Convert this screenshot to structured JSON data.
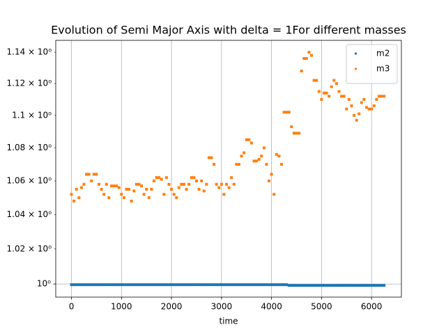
{
  "chart_data": {
    "type": "scatter",
    "title": "Evolution of Semi Major Axis with delta = 1For different masses",
    "x_label": "time",
    "log_y": true,
    "grid": true,
    "legend_position": "upper right",
    "xlim": [
      -314,
      6597
    ],
    "xticks": [
      0,
      1000,
      2000,
      3000,
      4000,
      5000,
      6000
    ],
    "ylim": [
      0.9926,
      1.1477
    ],
    "yticks": [
      {
        "value": 1.0,
        "label": "10⁰"
      }
    ],
    "yminorticks": [
      {
        "value": 1.02,
        "label": "1.02 × 10⁰"
      },
      {
        "value": 1.04,
        "label": "1.04 × 10⁰"
      },
      {
        "value": 1.06,
        "label": "1.06 × 10⁰"
      },
      {
        "value": 1.08,
        "label": "1.08 × 10⁰"
      },
      {
        "value": 1.1,
        "label": "1.1 × 10⁰"
      },
      {
        "value": 1.12,
        "label": "1.12 × 10⁰"
      },
      {
        "value": 1.14,
        "label": "1.14 × 10⁰"
      }
    ],
    "x": [
      0,
      50,
      100,
      150,
      200,
      250,
      300,
      350,
      400,
      450,
      500,
      550,
      600,
      650,
      700,
      750,
      800,
      850,
      900,
      950,
      1000,
      1050,
      1100,
      1150,
      1200,
      1250,
      1300,
      1350,
      1400,
      1450,
      1500,
      1550,
      1600,
      1650,
      1700,
      1750,
      1800,
      1850,
      1900,
      1950,
      2000,
      2050,
      2100,
      2150,
      2200,
      2250,
      2300,
      2350,
      2400,
      2450,
      2500,
      2550,
      2600,
      2650,
      2700,
      2750,
      2800,
      2850,
      2900,
      2950,
      3000,
      3050,
      3100,
      3150,
      3200,
      3250,
      3300,
      3350,
      3400,
      3450,
      3500,
      3550,
      3600,
      3650,
      3700,
      3750,
      3800,
      3850,
      3900,
      3950,
      4000,
      4050,
      4100,
      4150,
      4200,
      4250,
      4300,
      4350,
      4400,
      4450,
      4500,
      4550,
      4600,
      4650,
      4700,
      4750,
      4800,
      4850,
      4900,
      4950,
      5000,
      5050,
      5100,
      5150,
      5200,
      5250,
      5300,
      5350,
      5400,
      5450,
      5500,
      5550,
      5600,
      5650,
      5700,
      5750,
      5800,
      5850,
      5900,
      5950,
      6000,
      6050,
      6100,
      6150,
      6200,
      6250
    ],
    "series": [
      {
        "name": "m2",
        "color": "#1f77b4",
        "values": [
          0.9996,
          0.9996,
          0.9996,
          0.9996,
          0.9996,
          0.9996,
          0.9996,
          0.9996,
          0.9996,
          0.9996,
          0.9996,
          0.9996,
          0.9996,
          0.9996,
          0.9996,
          0.9996,
          0.9996,
          0.9996,
          0.9996,
          0.9996,
          0.9996,
          0.9996,
          0.9996,
          0.9996,
          0.9996,
          0.9996,
          0.9996,
          0.9996,
          0.9996,
          0.9996,
          0.9996,
          0.9996,
          0.9996,
          0.9996,
          0.9996,
          0.9996,
          0.9996,
          0.9996,
          0.9996,
          0.9996,
          0.9996,
          0.9996,
          0.9996,
          0.9996,
          0.9996,
          0.9996,
          0.9996,
          0.9996,
          0.9996,
          0.9996,
          0.9996,
          0.9996,
          0.9996,
          0.9996,
          0.9996,
          0.9996,
          0.9996,
          0.9996,
          0.9996,
          0.9996,
          0.9996,
          0.9996,
          0.9996,
          0.9996,
          0.9996,
          0.9996,
          0.9996,
          0.9996,
          0.9996,
          0.9996,
          0.9996,
          0.9996,
          0.9996,
          0.9996,
          0.9996,
          0.9996,
          0.9996,
          0.9996,
          0.9996,
          0.9996,
          0.9996,
          0.9996,
          0.9996,
          0.9996,
          0.9996,
          0.9996,
          0.9996,
          0.9992,
          0.9992,
          0.9992,
          0.9992,
          0.9992,
          0.9992,
          0.9992,
          0.9992,
          0.9992,
          0.9992,
          0.9992,
          0.9992,
          0.9992,
          0.9992,
          0.9992,
          0.9992,
          0.9992,
          0.9992,
          0.9992,
          0.9992,
          0.9992,
          0.9992,
          0.9992,
          0.9992,
          0.9992,
          0.9992,
          0.9992,
          0.9992,
          0.9992,
          0.9992,
          0.9992,
          0.9992,
          0.9992,
          0.9992,
          0.9992,
          0.9992,
          0.9992,
          0.9992,
          0.9992
        ]
      },
      {
        "name": "m3",
        "color": "#ff7f0e",
        "values": [
          1.052,
          1.048,
          1.055,
          1.05,
          1.056,
          1.058,
          1.064,
          1.064,
          1.06,
          1.064,
          1.064,
          1.058,
          1.055,
          1.052,
          1.058,
          1.05,
          1.057,
          1.057,
          1.057,
          1.056,
          1.052,
          1.05,
          1.055,
          1.055,
          1.048,
          1.054,
          1.058,
          1.058,
          1.057,
          1.052,
          1.055,
          1.05,
          1.055,
          1.06,
          1.062,
          1.062,
          1.061,
          1.052,
          1.062,
          1.058,
          1.055,
          1.052,
          1.05,
          1.056,
          1.058,
          1.058,
          1.055,
          1.058,
          1.062,
          1.062,
          1.06,
          1.055,
          1.06,
          1.054,
          1.058,
          1.074,
          1.074,
          1.07,
          1.058,
          1.056,
          1.058,
          1.052,
          1.058,
          1.056,
          1.062,
          1.058,
          1.07,
          1.07,
          1.075,
          1.077,
          1.085,
          1.085,
          1.083,
          1.072,
          1.072,
          1.073,
          1.075,
          1.08,
          1.07,
          1.06,
          1.064,
          1.052,
          1.076,
          1.075,
          1.07,
          1.102,
          1.102,
          1.102,
          1.093,
          1.089,
          1.089,
          1.089,
          1.128,
          1.136,
          1.136,
          1.14,
          1.138,
          1.122,
          1.122,
          1.115,
          1.11,
          1.114,
          1.114,
          1.112,
          1.118,
          1.122,
          1.12,
          1.115,
          1.112,
          1.112,
          1.104,
          1.11,
          1.106,
          1.1,
          1.097,
          1.101,
          1.108,
          1.11,
          1.105,
          1.104,
          1.104,
          1.106,
          1.11,
          1.112,
          1.112,
          1.112
        ]
      }
    ]
  }
}
